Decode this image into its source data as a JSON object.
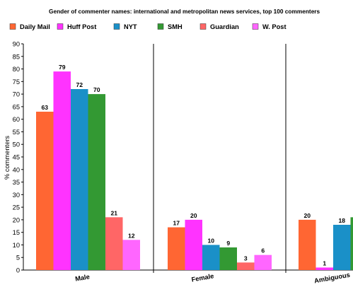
{
  "chart_data": {
    "type": "bar",
    "title": "Gender of commenter names: international and metropolitan news services, top 100 commenters",
    "ylabel": "% commenters",
    "xlabel": "",
    "ylim": [
      0,
      90
    ],
    "ytick_step": 5,
    "categories": [
      "Male",
      "Female",
      "Ambiguous"
    ],
    "series": [
      {
        "name": "Daily Mail",
        "color": "#ff6633",
        "values": [
          63,
          17,
          20
        ]
      },
      {
        "name": "Huff Post",
        "color": "#ff33ff",
        "values": [
          79,
          20,
          1
        ]
      },
      {
        "name": "NYT",
        "color": "#1a90c8",
        "values": [
          72,
          10,
          18
        ]
      },
      {
        "name": "SMH",
        "color": "#339933",
        "values": [
          70,
          9,
          21
        ]
      },
      {
        "name": "Guardian",
        "color": "#ff6666",
        "values": [
          21,
          3,
          null
        ]
      },
      {
        "name": "W. Post",
        "color": "#ff66ff",
        "values": [
          12,
          6,
          null
        ]
      }
    ],
    "legend_placement": "top",
    "grid": "vertical separators only"
  }
}
